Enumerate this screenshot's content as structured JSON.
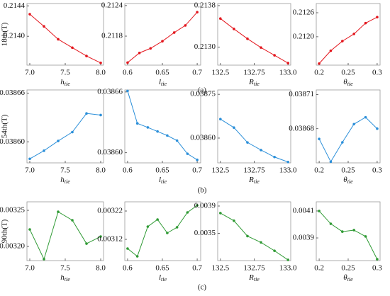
{
  "captions": [
    "(a)",
    "(b)",
    "(c)"
  ],
  "chart_data": [
    {
      "type": "line",
      "ylabel": "18th(T)",
      "xlabel": {
        "base": "h",
        "sub": "tie"
      },
      "color": "#e3161d",
      "x": [
        7.0,
        7.2,
        7.4,
        7.6,
        7.8,
        8.0
      ],
      "values": [
        0.21429,
        0.21413,
        0.21396,
        0.21385,
        0.21374,
        0.21365
      ],
      "xlim": [
        6.96,
        8.04
      ],
      "ylim": [
        0.21362,
        0.21443
      ],
      "xticks": [
        {
          "value": 7.0,
          "label": "7.0"
        },
        7.5,
        {
          "value": 8.0,
          "label": "8.0"
        }
      ],
      "yticks": [
        {
          "value": 0.214,
          "label": "0.2140"
        },
        {
          "value": 0.2144,
          "label": "0.2144"
        }
      ]
    },
    {
      "type": "line",
      "xlabel": {
        "base": "l",
        "sub": "tie"
      },
      "color": "#e3161d",
      "x": [
        0.6,
        0.617,
        0.633,
        0.65,
        0.667,
        0.683,
        0.7
      ],
      "values": [
        0.21128,
        0.21147,
        0.21156,
        0.2117,
        0.21187,
        0.21201,
        0.21227
      ],
      "xlim": [
        0.596,
        0.705
      ],
      "ylim": [
        0.21123,
        0.21244
      ],
      "xticks": [
        0.6,
        0.65,
        0.7
      ],
      "yticks": [
        {
          "value": 0.2118,
          "label": "0.2118"
        },
        {
          "value": 0.2124,
          "label": "0.2124"
        }
      ]
    },
    {
      "type": "line",
      "xlabel": {
        "base": "R",
        "sub": "tie"
      },
      "color": "#e3161d",
      "x": [
        132.5,
        132.6,
        132.7,
        132.8,
        132.9,
        133.0
      ],
      "values": [
        0.21355,
        0.21335,
        0.21316,
        0.21299,
        0.21284,
        0.21269
      ],
      "xlim": [
        132.48,
        133.02
      ],
      "ylim": [
        0.21265,
        0.21384
      ],
      "xticks": [
        132.5,
        132.75,
        {
          "value": 133.0,
          "label": "133.0"
        }
      ],
      "yticks": [
        {
          "value": 0.213,
          "label": "0.2130"
        },
        {
          "value": 0.2138,
          "label": "0.2138"
        }
      ]
    },
    {
      "type": "line",
      "xlabel": {
        "base": "θ",
        "sub": "tie"
      },
      "color": "#e3161d",
      "x": [
        0.2,
        0.22,
        0.24,
        0.26,
        0.28,
        0.3
      ],
      "values": [
        0.21133,
        0.21165,
        0.21189,
        0.21207,
        0.21234,
        0.21249
      ],
      "xlim": [
        0.195,
        0.305
      ],
      "ylim": [
        0.21129,
        0.21283
      ],
      "xticks": [
        0.2,
        0.25,
        0.3
      ],
      "yticks": [
        {
          "value": 0.212,
          "label": "0.2120"
        },
        {
          "value": 0.2126,
          "label": "0.2126"
        }
      ]
    },
    {
      "type": "line",
      "ylabel": "54th(T)",
      "xlabel": {
        "base": "h",
        "sub": "tie"
      },
      "color": "#2b8fd9",
      "x": [
        7.0,
        7.2,
        7.4,
        7.6,
        7.8,
        8.0
      ],
      "values": [
        0.038579,
        0.038589,
        0.038601,
        0.038612,
        0.038635,
        0.038633
      ],
      "xlim": [
        6.96,
        8.04
      ],
      "ylim": [
        0.038574,
        0.038664
      ],
      "xticks": [
        {
          "value": 7.0,
          "label": "7.0"
        },
        7.5,
        {
          "value": 8.0,
          "label": "8.0"
        }
      ],
      "yticks": [
        {
          "value": 0.0386,
          "label": "0.03860"
        },
        0.03866
      ]
    },
    {
      "type": "line",
      "xlabel": {
        "base": "l",
        "sub": "tie"
      },
      "color": "#2b8fd9",
      "x": [
        0.6,
        0.614,
        0.629,
        0.643,
        0.657,
        0.671,
        0.686,
        0.7
      ],
      "values": [
        0.038661,
        0.038629,
        0.038625,
        0.038621,
        0.038617,
        0.038612,
        0.038599,
        0.038593
      ],
      "xlim": [
        0.596,
        0.705
      ],
      "ylim": [
        0.03859,
        0.038662
      ],
      "xticks": [
        0.6,
        0.65,
        0.7
      ],
      "yticks": [
        {
          "value": 0.0386,
          "label": "0.03860"
        },
        0.03866
      ]
    },
    {
      "type": "line",
      "xlabel": {
        "base": "R",
        "sub": "tie"
      },
      "color": "#2b8fd9",
      "x": [
        132.5,
        132.6,
        132.7,
        132.8,
        132.9,
        133.0
      ],
      "values": [
        0.038665,
        0.038636,
        0.038585,
        0.038559,
        0.038535,
        0.038518
      ],
      "xlim": [
        132.48,
        133.02
      ],
      "ylim": [
        0.038515,
        0.038765
      ],
      "xticks": [
        132.5,
        132.75,
        {
          "value": 133.0,
          "label": "133.0"
        }
      ],
      "yticks": [
        {
          "value": 0.0386,
          "label": "0.03860"
        },
        0.03875
      ]
    },
    {
      "type": "line",
      "xlabel": {
        "base": "θ",
        "sub": "tie"
      },
      "color": "#2b8fd9",
      "x": [
        0.2,
        0.22,
        0.24,
        0.26,
        0.28,
        0.3
      ],
      "values": [
        0.038671,
        0.038651,
        0.038668,
        0.038684,
        0.03869,
        0.03868
      ],
      "xlim": [
        0.195,
        0.305
      ],
      "ylim": [
        0.03865,
        0.038714
      ],
      "xticks": [
        0.2,
        0.25,
        0.3
      ],
      "yticks": [
        {
          "value": 0.03868,
          "label": "0.03868"
        },
        0.03871
      ]
    },
    {
      "type": "line",
      "ylabel": "90th(T)",
      "xlabel": {
        "base": "h",
        "sub": "tie"
      },
      "color": "#2f9a34",
      "x": [
        7.0,
        7.2,
        7.4,
        7.6,
        7.8,
        8.0
      ],
      "values": [
        0.0032235,
        0.0031824,
        0.003248,
        0.0032363,
        0.0032039,
        0.0032137
      ],
      "xlim": [
        6.96,
        8.04
      ],
      "ylim": [
        0.0031804,
        0.0032618
      ],
      "xticks": [
        {
          "value": 7.0,
          "label": "7.0"
        },
        7.5,
        {
          "value": 8.0,
          "label": "8.0"
        }
      ],
      "yticks": [
        {
          "value": 0.0032,
          "label": "0.00320"
        },
        0.00325
      ]
    },
    {
      "type": "line",
      "xlabel": {
        "base": "l",
        "sub": "tie"
      },
      "color": "#2f9a34",
      "x": [
        0.6,
        0.614,
        0.629,
        0.643,
        0.657,
        0.671,
        0.686,
        0.7
      ],
      "values": [
        0.0030875,
        0.00306,
        0.003165,
        0.00319,
        0.0031425,
        0.0031625,
        0.003215,
        0.00324
      ],
      "xlim": [
        0.596,
        0.705
      ],
      "ylim": [
        0.003045,
        0.0032525
      ],
      "xticks": [
        0.6,
        0.65,
        0.7
      ],
      "yticks": [
        0.00312,
        0.00322
      ]
    },
    {
      "type": "line",
      "xlabel": {
        "base": "R",
        "sub": "tie"
      },
      "color": "#2f9a34",
      "x": [
        132.5,
        132.6,
        132.7,
        132.8,
        132.9,
        133.0
      ],
      "values": [
        0.003797,
        0.003685,
        0.003459,
        0.003367,
        0.003244,
        0.00311
      ],
      "xlim": [
        132.48,
        133.02
      ],
      "ylim": [
        0.0031,
        0.003962
      ],
      "xticks": [
        132.5,
        132.75,
        {
          "value": 133.0,
          "label": "133.0"
        }
      ],
      "yticks": [
        0.0035,
        0.0039
      ]
    },
    {
      "type": "line",
      "xlabel": {
        "base": "θ",
        "sub": "tie"
      },
      "color": "#2f9a34",
      "x": [
        0.2,
        0.22,
        0.24,
        0.26,
        0.28,
        0.3
      ],
      "values": [
        0.0041,
        0.004005,
        0.003947,
        0.003958,
        0.003911,
        0.003742
      ],
      "xlim": [
        0.195,
        0.305
      ],
      "ylim": [
        0.003732,
        0.004168
      ],
      "xticks": [
        0.2,
        0.25,
        0.3
      ],
      "yticks": [
        0.0039,
        0.0041
      ]
    }
  ]
}
